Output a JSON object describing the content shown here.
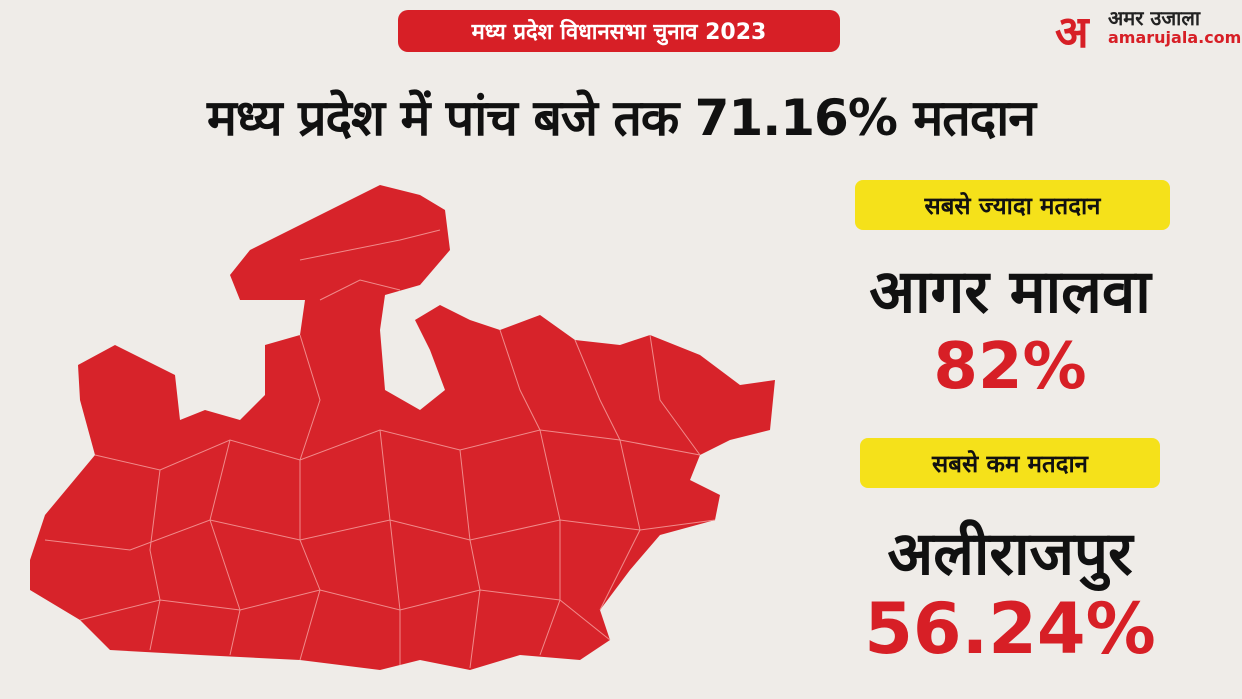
{
  "banner": "मध्य प्रदेश विधानसभा चुनाव 2023",
  "logo": {
    "mark": "अ",
    "name": "अमर उजाला",
    "url": "amarujala.com"
  },
  "headline": "मध्य प्रदेश में  पांच बजे तक 71.16% मतदान",
  "highest": {
    "label": "सबसे ज्यादा मतदान",
    "district": "आगर मालवा",
    "turnout": "82%"
  },
  "lowest": {
    "label": "सबसे कम मतदान",
    "district": "अलीराजपुर",
    "turnout": "56.24%"
  }
}
